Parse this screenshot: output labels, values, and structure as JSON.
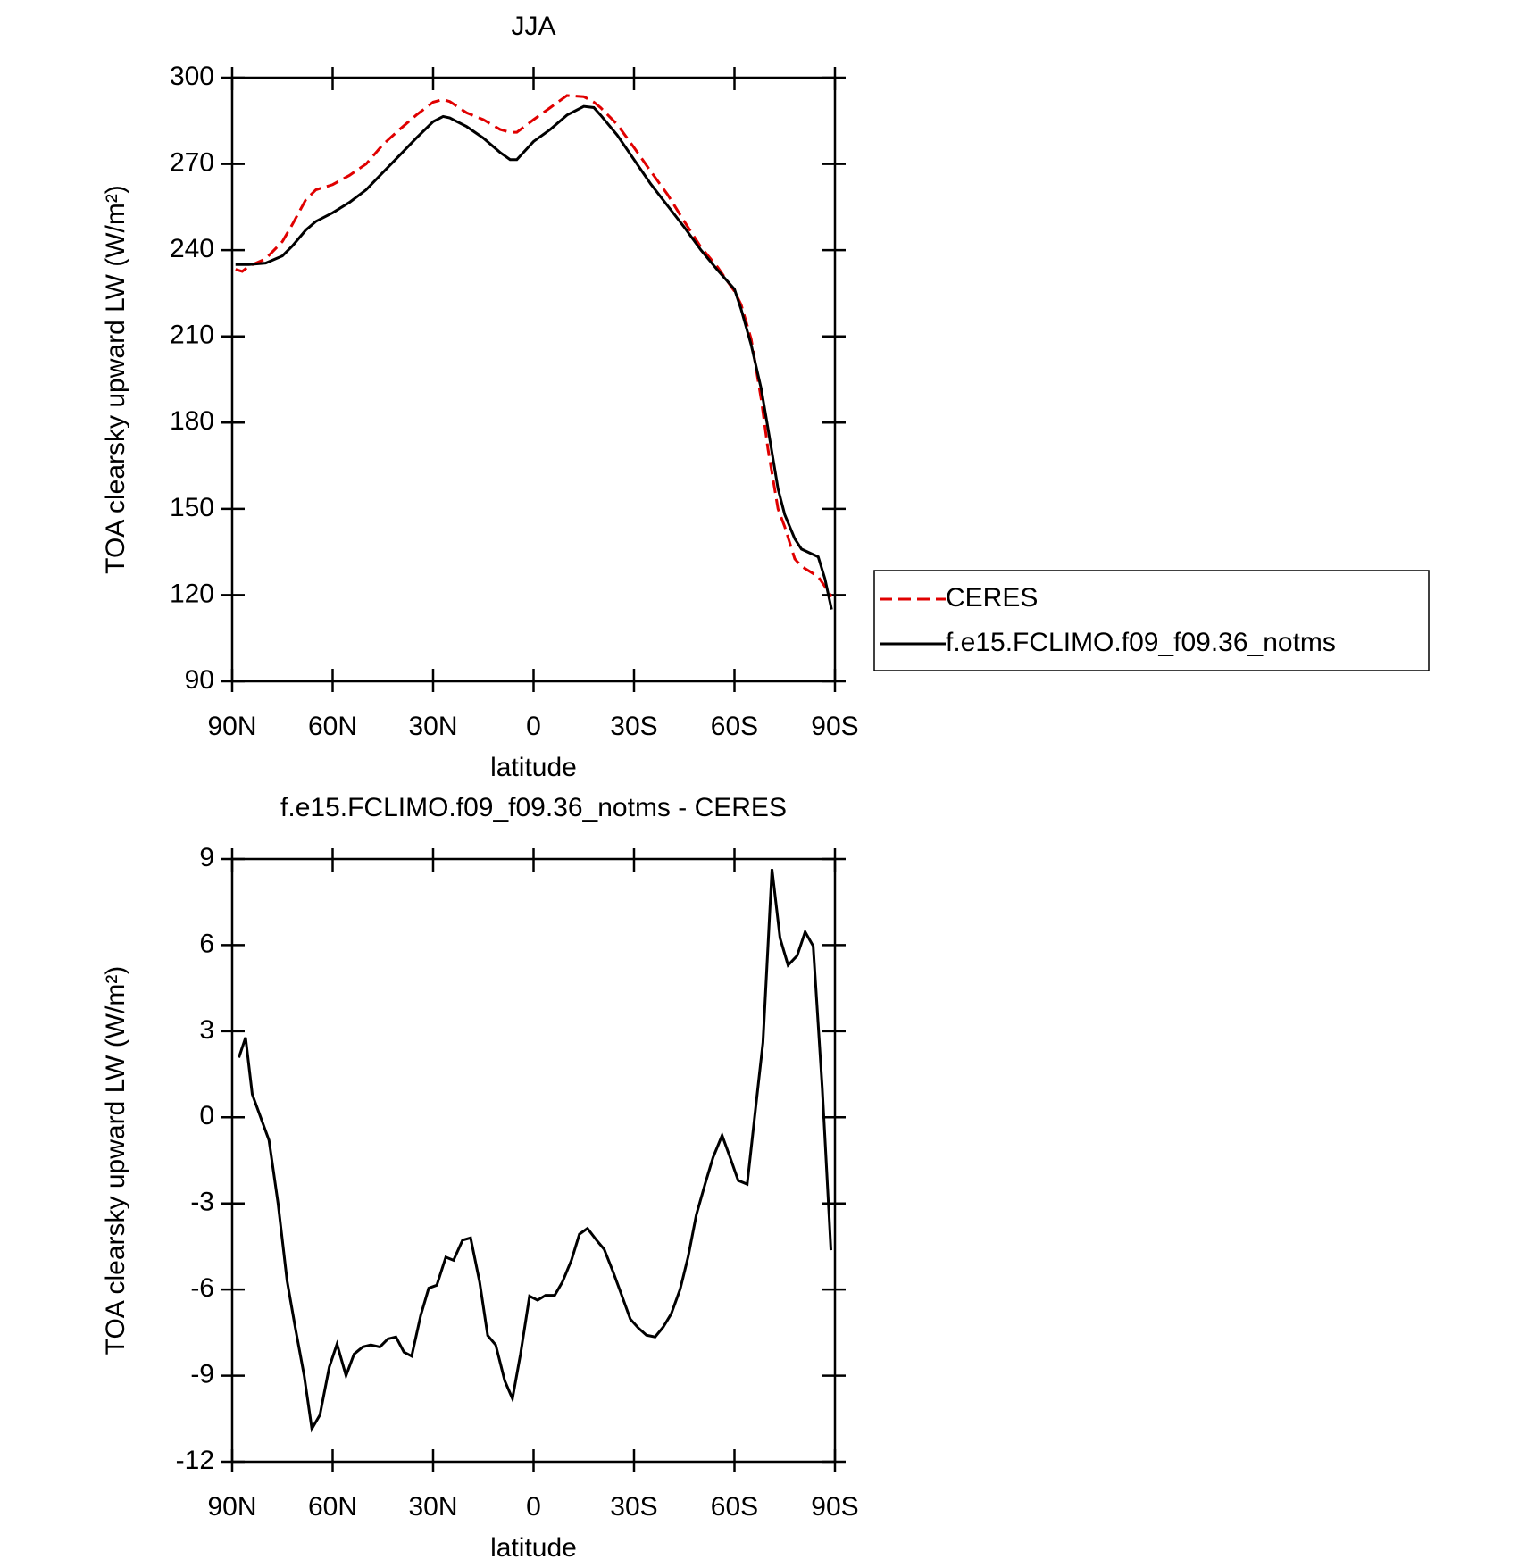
{
  "chart_data": [
    {
      "type": "line",
      "title": "JJA",
      "xlabel": "latitude",
      "ylabel": "TOA clearsky upward LW (W/m²)",
      "x": [
        89,
        87,
        85,
        80,
        75,
        72,
        68,
        65,
        60,
        55,
        50,
        45,
        40,
        35,
        30,
        27,
        25,
        20,
        15,
        10,
        7,
        5,
        0,
        -5,
        -10,
        -15,
        -18,
        -20,
        -25,
        -30,
        -35,
        -40,
        -45,
        -50,
        -55,
        -60,
        -62,
        -65,
        -68,
        -70,
        -73,
        -75,
        -78,
        -80,
        -85,
        -87,
        -89
      ],
      "series": [
        {
          "name": "CERES",
          "color": "#e00000",
          "line_style": "dashed",
          "values": [
            233.3,
            232.6,
            234.4,
            237,
            243,
            249,
            257.6,
            261,
            262.8,
            266,
            270,
            276.7,
            282,
            287,
            291.5,
            292.4,
            291.7,
            287.8,
            285.4,
            282,
            281,
            281,
            285.4,
            289.6,
            293.8,
            293.4,
            291.5,
            289.6,
            283.7,
            275.7,
            267.4,
            259.4,
            250,
            241,
            234,
            225.7,
            221,
            209,
            188,
            170.8,
            150,
            143.8,
            132.6,
            130,
            126.4,
            123,
            119.4
          ]
        },
        {
          "name": "f.e15.FCLIMO.f09_f09.36_notms",
          "color": "#000000",
          "line_style": "solid",
          "values": [
            235,
            235,
            235,
            235.5,
            238,
            241.5,
            247,
            250,
            253,
            256.6,
            261,
            267,
            273,
            279,
            284.7,
            286.5,
            286,
            283,
            279,
            274,
            271.5,
            271.5,
            277.8,
            282,
            287,
            290,
            289.6,
            287,
            280,
            271.5,
            263,
            255.5,
            248,
            240,
            233,
            226.4,
            219.4,
            207,
            191.7,
            178,
            157,
            148,
            139.6,
            136,
            133.3,
            125.7,
            115
          ]
        }
      ],
      "xlim": [
        90,
        -90
      ],
      "ylim": [
        90,
        300
      ],
      "xticks": [
        {
          "value": 90,
          "label": "90N"
        },
        {
          "value": 60,
          "label": "60N"
        },
        {
          "value": 30,
          "label": "30N"
        },
        0,
        {
          "value": -30,
          "label": "30S"
        },
        {
          "value": -60,
          "label": "60S"
        },
        {
          "value": -90,
          "label": "90S"
        }
      ],
      "yticks": [
        90,
        120,
        150,
        180,
        210,
        240,
        270,
        300
      ],
      "legend": "right"
    },
    {
      "type": "line",
      "title": "f.e15.FCLIMO.f09_f09.36_notms - CERES",
      "xlabel": "latitude",
      "ylabel": "TOA clearsky upward LW (W/m²)",
      "x": [
        88,
        86,
        84,
        79,
        76.3,
        73.6,
        71.2,
        68.5,
        66.2,
        63.8,
        61,
        58.7,
        56,
        53.6,
        51,
        48.6,
        45.9,
        43.5,
        41.1,
        38.7,
        36.4,
        33.7,
        31.3,
        28.9,
        26.2,
        23.9,
        21.2,
        18.8,
        16.1,
        13.7,
        11.3,
        8.6,
        6.3,
        3.9,
        1.2,
        -1.2,
        -3.6,
        -6.3,
        -8.6,
        -11.3,
        -13.7,
        -16.1,
        -18.8,
        -21.1,
        -23.8,
        -26.2,
        -28.9,
        -31.3,
        -33.7,
        -36.3,
        -38.7,
        -41.1,
        -43.8,
        -46.2,
        -48.6,
        -51.2,
        -53.6,
        -56.3,
        -58.7,
        -61.1,
        -63.8,
        -66.1,
        -68.5,
        -71.2,
        -73.6,
        -76,
        -78.7,
        -81.1,
        -83.5,
        -86.2,
        -88.8
      ],
      "series": [
        {
          "name": "f.e15.FCLIMO.f09_f09.36_notms - CERES",
          "color": "#000000",
          "line_style": "solid",
          "values": [
            2.08,
            2.78,
            0.8,
            -0.8,
            -3.0,
            -5.7,
            -7.3,
            -9.0,
            -10.85,
            -10.37,
            -8.7,
            -7.9,
            -9.0,
            -8.25,
            -8.0,
            -7.93,
            -8.0,
            -7.72,
            -7.65,
            -8.18,
            -8.32,
            -6.9,
            -5.95,
            -5.85,
            -4.87,
            -4.98,
            -4.28,
            -4.2,
            -5.74,
            -7.6,
            -7.93,
            -9.18,
            -9.8,
            -8.25,
            -6.23,
            -6.37,
            -6.2,
            -6.2,
            -5.74,
            -4.98,
            -4.07,
            -3.87,
            -4.28,
            -4.6,
            -5.4,
            -6.16,
            -7.03,
            -7.34,
            -7.59,
            -7.65,
            -7.31,
            -6.85,
            -5.98,
            -4.84,
            -3.4,
            -2.33,
            -1.4,
            -0.63,
            -1.4,
            -2.2,
            -2.33,
            0.1,
            2.6,
            8.65,
            6.25,
            5.3,
            5.63,
            6.46,
            5.97,
            1.04,
            -4.63
          ]
        }
      ],
      "xlim": [
        90,
        -90
      ],
      "ylim": [
        -12,
        9
      ],
      "xticks": [
        {
          "value": 90,
          "label": "90N"
        },
        {
          "value": 60,
          "label": "60N"
        },
        {
          "value": 30,
          "label": "30N"
        },
        0,
        {
          "value": -30,
          "label": "30S"
        },
        {
          "value": -60,
          "label": "60S"
        },
        {
          "value": -90,
          "label": "90S"
        }
      ],
      "yticks": [
        -12,
        -9,
        -6,
        -3,
        0,
        3,
        6,
        9
      ]
    }
  ]
}
